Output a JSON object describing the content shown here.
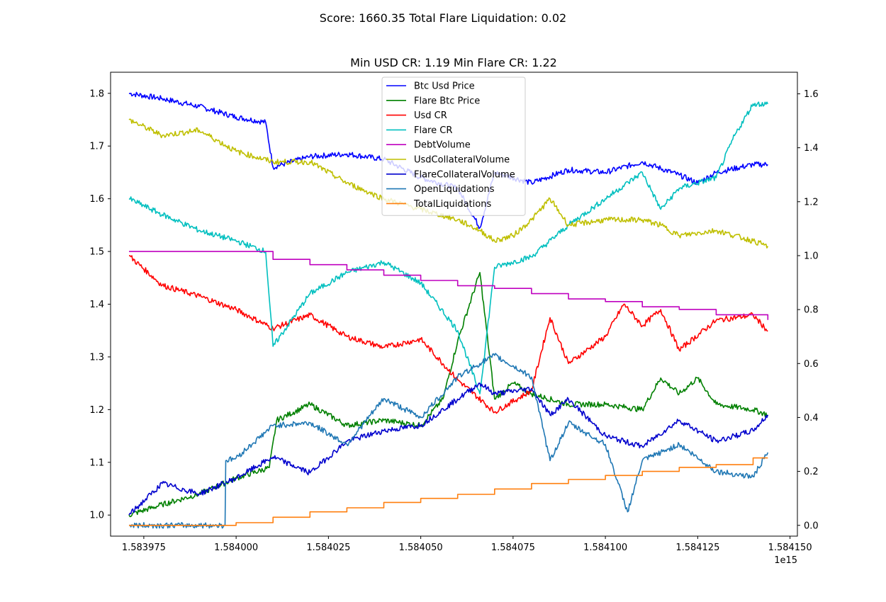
{
  "figure": {
    "suptitle": "Score: 1660.35 Total Flare Liquidation: 0.02",
    "axes_title": "Min USD CR: 1.19 Min Flare CR: 1.22",
    "x_offset_label": "1e15"
  },
  "chart_data": {
    "type": "line",
    "title": "Min USD CR: 1.19 Min Flare CR: 1.22",
    "xlabel": "",
    "ylabel": "",
    "xlim": [
      1583966,
      1584152
    ],
    "ylim_left": [
      0.96,
      1.84
    ],
    "ylim_right": [
      -0.04,
      1.68
    ],
    "x_ticks": [
      1583975,
      1584000,
      1584025,
      1584050,
      1584075,
      1584100,
      1584125,
      1584150
    ],
    "x_tick_labels": [
      "1.583975",
      "1.584000",
      "1.584025",
      "1.584050",
      "1.584075",
      "1.584100",
      "1.584125",
      "1.584150"
    ],
    "y_left_ticks": [
      1.0,
      1.1,
      1.2,
      1.3,
      1.4,
      1.5,
      1.6,
      1.7,
      1.8
    ],
    "y_left_tick_labels": [
      "1.0",
      "1.1",
      "1.2",
      "1.3",
      "1.4",
      "1.5",
      "1.6",
      "1.7",
      "1.8"
    ],
    "y_right_ticks": [
      0.0,
      0.2,
      0.4,
      0.6,
      0.8,
      1.0,
      1.2,
      1.4,
      1.6
    ],
    "y_right_tick_labels": [
      "0.0",
      "0.2",
      "0.4",
      "0.6",
      "0.8",
      "1.0",
      "1.2",
      "1.4",
      "1.6"
    ],
    "grid": false,
    "legend_position": "top-center",
    "series": [
      {
        "name": "Btc Usd Price",
        "color": "#0000ff",
        "axis": "left",
        "x": [
          1583971,
          1583980,
          1583990,
          1584000,
          1584008,
          1584010,
          1584020,
          1584030,
          1584040,
          1584050,
          1584060,
          1584066,
          1584070,
          1584080,
          1584090,
          1584100,
          1584110,
          1584120,
          1584125,
          1584130,
          1584140,
          1584144
        ],
        "values": [
          1.8,
          1.79,
          1.775,
          1.755,
          1.745,
          1.66,
          1.68,
          1.685,
          1.675,
          1.64,
          1.62,
          1.545,
          1.65,
          1.63,
          1.655,
          1.65,
          1.67,
          1.645,
          1.63,
          1.65,
          1.665,
          1.665
        ]
      },
      {
        "name": "Flare Btc Price",
        "color": "#008000",
        "axis": "left",
        "x": [
          1583971,
          1583980,
          1583990,
          1584000,
          1584009,
          1584011,
          1584020,
          1584030,
          1584040,
          1584050,
          1584056,
          1584060,
          1584066,
          1584070,
          1584075,
          1584080,
          1584090,
          1584100,
          1584110,
          1584115,
          1584120,
          1584125,
          1584130,
          1584140,
          1584144
        ],
        "values": [
          1.0,
          1.02,
          1.04,
          1.07,
          1.09,
          1.18,
          1.21,
          1.17,
          1.18,
          1.17,
          1.22,
          1.33,
          1.46,
          1.22,
          1.25,
          1.23,
          1.21,
          1.21,
          1.2,
          1.26,
          1.23,
          1.26,
          1.21,
          1.2,
          1.19
        ]
      },
      {
        "name": "Usd CR",
        "color": "#ff0000",
        "axis": "right",
        "x": [
          1583971,
          1583980,
          1583990,
          1584000,
          1584010,
          1584020,
          1584030,
          1584040,
          1584050,
          1584060,
          1584070,
          1584080,
          1584085,
          1584090,
          1584100,
          1584105,
          1584110,
          1584115,
          1584120,
          1584130,
          1584140,
          1584144
        ],
        "values": [
          1.0,
          0.89,
          0.85,
          0.8,
          0.73,
          0.78,
          0.7,
          0.66,
          0.69,
          0.54,
          0.42,
          0.5,
          0.77,
          0.6,
          0.7,
          0.82,
          0.74,
          0.8,
          0.65,
          0.76,
          0.78,
          0.72
        ]
      },
      {
        "name": "Flare CR",
        "color": "#00bfbf",
        "axis": "left",
        "x": [
          1583971,
          1583980,
          1583990,
          1584000,
          1584008,
          1584010,
          1584020,
          1584030,
          1584040,
          1584050,
          1584060,
          1584066,
          1584070,
          1584080,
          1584090,
          1584100,
          1584110,
          1584115,
          1584120,
          1584130,
          1584135,
          1584140,
          1584144
        ],
        "values": [
          1.6,
          1.57,
          1.54,
          1.52,
          1.5,
          1.32,
          1.42,
          1.46,
          1.48,
          1.44,
          1.35,
          1.23,
          1.47,
          1.49,
          1.55,
          1.6,
          1.65,
          1.58,
          1.62,
          1.64,
          1.72,
          1.78,
          1.78
        ]
      },
      {
        "name": "DebtVolume",
        "color": "#bf00bf",
        "axis": "left",
        "x": [
          1583971,
          1584000,
          1584010,
          1584020,
          1584030,
          1584040,
          1584050,
          1584060,
          1584070,
          1584080,
          1584090,
          1584100,
          1584110,
          1584120,
          1584130,
          1584144
        ],
        "values": [
          1.5,
          1.5,
          1.485,
          1.475,
          1.465,
          1.455,
          1.445,
          1.435,
          1.43,
          1.42,
          1.41,
          1.405,
          1.395,
          1.39,
          1.38,
          1.37
        ]
      },
      {
        "name": "UsdCollateralVolume",
        "color": "#bfbf00",
        "axis": "left",
        "x": [
          1583971,
          1583980,
          1583990,
          1584000,
          1584010,
          1584020,
          1584030,
          1584040,
          1584050,
          1584060,
          1584066,
          1584070,
          1584075,
          1584080,
          1584085,
          1584090,
          1584100,
          1584110,
          1584115,
          1584120,
          1584130,
          1584140,
          1584144
        ],
        "values": [
          1.75,
          1.72,
          1.73,
          1.69,
          1.67,
          1.67,
          1.63,
          1.6,
          1.58,
          1.56,
          1.54,
          1.52,
          1.53,
          1.56,
          1.6,
          1.55,
          1.56,
          1.56,
          1.55,
          1.53,
          1.54,
          1.52,
          1.51
        ]
      },
      {
        "name": "FlareCollateralVolume",
        "color": "#0000cd",
        "axis": "left",
        "x": [
          1583971,
          1583980,
          1583990,
          1584000,
          1584010,
          1584020,
          1584030,
          1584040,
          1584050,
          1584060,
          1584066,
          1584070,
          1584080,
          1584085,
          1584090,
          1584100,
          1584110,
          1584120,
          1584130,
          1584140,
          1584144
        ],
        "values": [
          1.0,
          1.06,
          1.04,
          1.07,
          1.11,
          1.08,
          1.14,
          1.16,
          1.17,
          1.22,
          1.25,
          1.23,
          1.24,
          1.19,
          1.22,
          1.15,
          1.13,
          1.18,
          1.14,
          1.16,
          1.19
        ]
      },
      {
        "name": "OpenLiquidations",
        "color": "#1f77b4",
        "axis": "right",
        "x": [
          1583971,
          1583997,
          1583997.2,
          1584000,
          1584010,
          1584020,
          1584030,
          1584040,
          1584050,
          1584060,
          1584066,
          1584070,
          1584080,
          1584085,
          1584090,
          1584100,
          1584106,
          1584110,
          1584120,
          1584130,
          1584140,
          1584144
        ],
        "values": [
          0.0,
          0.0,
          0.24,
          0.25,
          0.37,
          0.38,
          0.3,
          0.47,
          0.4,
          0.55,
          0.6,
          0.63,
          0.55,
          0.24,
          0.38,
          0.3,
          0.05,
          0.24,
          0.3,
          0.2,
          0.18,
          0.27
        ]
      },
      {
        "name": "TotalLiquidations",
        "color": "#ff7f0e",
        "axis": "right",
        "x": [
          1583971,
          1583997,
          1584000,
          1584010,
          1584020,
          1584030,
          1584040,
          1584050,
          1584060,
          1584070,
          1584080,
          1584090,
          1584100,
          1584110,
          1584120,
          1584130,
          1584140,
          1584144
        ],
        "values": [
          0.0,
          0.0,
          0.01,
          0.03,
          0.05,
          0.065,
          0.085,
          0.1,
          0.115,
          0.135,
          0.155,
          0.17,
          0.185,
          0.2,
          0.215,
          0.225,
          0.25,
          0.25
        ]
      }
    ]
  }
}
